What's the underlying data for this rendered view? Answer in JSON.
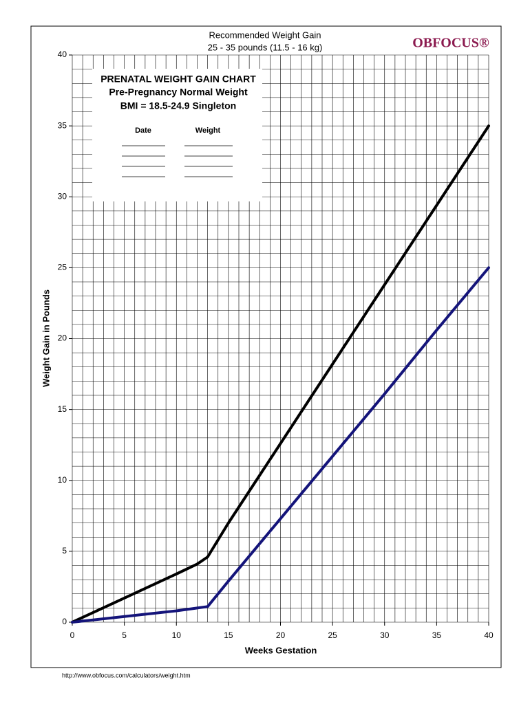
{
  "chart_data": {
    "type": "line",
    "title": "Recommended Weight Gain",
    "subtitle": "25 - 35  pounds (11.5 - 16  kg)",
    "logo": "OBFOCUS®",
    "box_title": "PRENATAL WEIGHT GAIN CHART",
    "box_line1": "Pre-Pregnancy Normal Weight",
    "box_line2": "BMI = 18.5-24.9  Singleton",
    "box_col1": "Date",
    "box_col2": "Weight",
    "xlabel": "Weeks Gestation",
    "ylabel": "Weight Gain in Pounds",
    "footer": "http://www.obfocus.com/calculators/weight.htm",
    "x": [
      0,
      5,
      10,
      12,
      13,
      14,
      15,
      20,
      25,
      30,
      35,
      40
    ],
    "series": [
      {
        "color": "#000000",
        "values": [
          0,
          1.7,
          3.4,
          4.1,
          4.6,
          5.8,
          7.0,
          12.6,
          18.2,
          23.8,
          29.4,
          35
        ]
      },
      {
        "color": "#14147a",
        "values": [
          0,
          0.4,
          0.8,
          1.0,
          1.1,
          2.0,
          2.9,
          7.3,
          11.7,
          16.1,
          20.6,
          25
        ]
      }
    ],
    "xlim": [
      0,
      40
    ],
    "ylim": [
      0,
      40
    ],
    "xticks": [
      0,
      5,
      10,
      15,
      20,
      25,
      30,
      35,
      40
    ],
    "yticks": [
      0,
      5,
      10,
      15,
      20,
      25,
      30,
      35,
      40
    ],
    "xgrid": [
      0,
      1,
      2,
      3,
      4,
      5,
      6,
      7,
      8,
      9,
      10,
      11,
      12,
      13,
      14,
      15,
      16,
      17,
      18,
      19,
      20,
      21,
      22,
      23,
      24,
      25,
      26,
      27,
      28,
      29,
      30,
      31,
      32,
      33,
      34,
      35,
      36,
      37,
      38,
      39,
      40
    ],
    "ygrid": [
      0,
      1,
      2,
      3,
      4,
      5,
      6,
      7,
      8,
      9,
      10,
      11,
      12,
      13,
      14,
      15,
      16,
      17,
      18,
      19,
      20,
      21,
      22,
      23,
      24,
      25,
      26,
      27,
      28,
      29,
      30,
      31,
      32,
      33,
      34,
      35,
      36,
      37,
      38,
      39,
      40
    ],
    "grid": true
  }
}
